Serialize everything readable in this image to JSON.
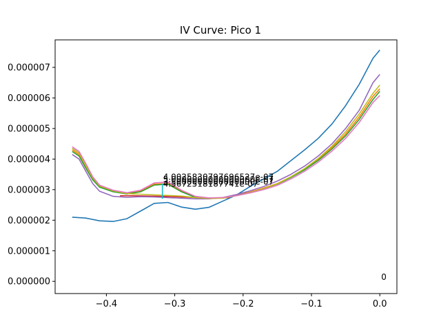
{
  "chart_data": {
    "type": "line",
    "title": "IV Curve: Pico 1",
    "xlabel": "",
    "ylabel": "",
    "xlim": [
      -0.475,
      0.025
    ],
    "ylim": [
      -4e-07,
      7.9e-06
    ],
    "grid": false,
    "legend": "none",
    "x_ticks": [
      {
        "value": -0.4,
        "label": "−0.4"
      },
      {
        "value": -0.3,
        "label": "−0.3"
      },
      {
        "value": -0.2,
        "label": "−0.2"
      },
      {
        "value": -0.1,
        "label": "−0.1"
      },
      {
        "value": 0.0,
        "label": "0.0"
      }
    ],
    "y_ticks": [
      {
        "value": 0.0,
        "label": "0.000000"
      },
      {
        "value": 1e-06,
        "label": "0.000001"
      },
      {
        "value": 2e-06,
        "label": "0.000002"
      },
      {
        "value": 3e-06,
        "label": "0.000003"
      },
      {
        "value": 4e-06,
        "label": "0.000004"
      },
      {
        "value": 5e-06,
        "label": "0.000005"
      },
      {
        "value": 6e-06,
        "label": "0.000006"
      },
      {
        "value": 7e-06,
        "label": "0.000007"
      }
    ],
    "series": [
      {
        "color": "#1f77b4",
        "x": [
          -0.45,
          -0.43,
          -0.41,
          -0.39,
          -0.37,
          -0.35,
          -0.33,
          -0.31,
          -0.29,
          -0.27,
          -0.25,
          -0.23,
          -0.21,
          -0.19,
          -0.17,
          -0.15,
          -0.13,
          -0.11,
          -0.09,
          -0.07,
          -0.05,
          -0.03,
          -0.01,
          0.0
        ],
        "y": [
          2.1e-06,
          2.07e-06,
          1.98e-06,
          1.96e-06,
          2.05e-06,
          2.3e-06,
          2.55e-06,
          2.58e-06,
          2.43e-06,
          2.36e-06,
          2.42e-06,
          2.62e-06,
          2.82e-06,
          3.1e-06,
          3.35e-06,
          3.6e-06,
          3.95e-06,
          4.3e-06,
          4.68e-06,
          5.15e-06,
          5.75e-06,
          6.45e-06,
          7.3e-06,
          7.57e-06
        ]
      },
      {
        "color": "#ff7f0e",
        "x": [
          -0.45,
          -0.44,
          -0.43,
          -0.42,
          -0.41,
          -0.39,
          -0.37,
          -0.35,
          -0.33,
          -0.31,
          -0.29,
          -0.27,
          -0.25,
          -0.23,
          -0.21,
          -0.19,
          -0.17,
          -0.15,
          -0.13,
          -0.11,
          -0.09,
          -0.07,
          -0.05,
          -0.03,
          -0.01,
          0.0
        ],
        "y": [
          4.3e-06,
          4.15e-06,
          3.75e-06,
          3.35e-06,
          3.1e-06,
          2.95e-06,
          2.88e-06,
          2.95e-06,
          3.18e-06,
          3.2e-06,
          2.95e-06,
          2.76e-06,
          2.72e-06,
          2.74e-06,
          2.82e-06,
          2.92e-06,
          3.05e-06,
          3.2e-06,
          3.42e-06,
          3.68e-06,
          4e-06,
          4.38e-06,
          4.82e-06,
          5.38e-06,
          6.05e-06,
          6.3e-06
        ]
      },
      {
        "color": "#2ca02c",
        "x": [
          -0.45,
          -0.44,
          -0.43,
          -0.42,
          -0.41,
          -0.39,
          -0.37,
          -0.35,
          -0.33,
          -0.31,
          -0.29,
          -0.27,
          -0.25,
          -0.23,
          -0.21,
          -0.19,
          -0.17,
          -0.15,
          -0.13,
          -0.11,
          -0.09,
          -0.07,
          -0.05,
          -0.03,
          -0.01,
          0.0
        ],
        "y": [
          4.25e-06,
          4.1e-06,
          3.7e-06,
          3.32e-06,
          3.08e-06,
          2.93e-06,
          2.86e-06,
          2.93e-06,
          3.15e-06,
          3.18e-06,
          2.93e-06,
          2.75e-06,
          2.71e-06,
          2.73e-06,
          2.81e-06,
          2.9e-06,
          3.03e-06,
          3.18e-06,
          3.4e-06,
          3.65e-06,
          3.96e-06,
          4.33e-06,
          4.76e-06,
          5.3e-06,
          5.95e-06,
          6.22e-06
        ]
      },
      {
        "color": "#d62728",
        "x": [
          -0.38,
          -0.36,
          -0.34,
          -0.32,
          -0.3,
          -0.28,
          -0.26,
          -0.24,
          -0.22
        ],
        "y": [
          2.8e-06,
          2.8e-06,
          2.79e-06,
          2.78e-06,
          2.77e-06,
          2.75e-06,
          2.73e-06,
          2.72e-06,
          2.74e-06
        ]
      },
      {
        "color": "#9467bd",
        "x": [
          -0.45,
          -0.44,
          -0.43,
          -0.42,
          -0.41,
          -0.39,
          -0.37,
          -0.35,
          -0.33,
          -0.31,
          -0.29,
          -0.27,
          -0.25,
          -0.23,
          -0.21,
          -0.19,
          -0.17,
          -0.15,
          -0.13,
          -0.11,
          -0.09,
          -0.07,
          -0.05,
          -0.03,
          -0.01,
          0.0
        ],
        "y": [
          4.15e-06,
          4e-06,
          3.6e-06,
          3.2e-06,
          2.95e-06,
          2.78e-06,
          2.75e-06,
          2.77e-06,
          2.76e-06,
          2.74e-06,
          2.72e-06,
          2.7e-06,
          2.7e-06,
          2.74e-06,
          2.84e-06,
          2.96e-06,
          3.1e-06,
          3.28e-06,
          3.5e-06,
          3.77e-06,
          4.1e-06,
          4.5e-06,
          5e-06,
          5.6e-06,
          6.5e-06,
          6.77e-06
        ]
      },
      {
        "color": "#bcbd22",
        "x": [
          -0.45,
          -0.44,
          -0.43,
          -0.42,
          -0.41,
          -0.39,
          -0.37,
          -0.35,
          -0.33,
          -0.31,
          -0.29,
          -0.27,
          -0.25,
          -0.23,
          -0.21,
          -0.19,
          -0.17,
          -0.15,
          -0.13,
          -0.11,
          -0.09,
          -0.07,
          -0.05,
          -0.03,
          -0.01,
          0.0
        ],
        "y": [
          4.35e-06,
          4.2e-06,
          3.78e-06,
          3.38e-06,
          3.12e-06,
          2.96e-06,
          2.87e-06,
          2.85e-06,
          2.83e-06,
          2.81e-06,
          2.79e-06,
          2.74e-06,
          2.71e-06,
          2.72e-06,
          2.8e-06,
          2.9e-06,
          3.03e-06,
          3.19e-06,
          3.42e-06,
          3.69e-06,
          4.02e-06,
          4.42e-06,
          4.9e-06,
          5.48e-06,
          6.15e-06,
          6.42e-06
        ]
      },
      {
        "color": "#e377c2",
        "x": [
          -0.45,
          -0.44,
          -0.43,
          -0.42,
          -0.41,
          -0.39,
          -0.37,
          -0.35,
          -0.33,
          -0.31,
          -0.29,
          -0.27,
          -0.25,
          -0.23,
          -0.21,
          -0.19,
          -0.17,
          -0.15,
          -0.13,
          -0.11,
          -0.09,
          -0.07,
          -0.05,
          -0.03,
          -0.01,
          0.0
        ],
        "y": [
          4.4e-06,
          4.25e-06,
          3.85e-06,
          3.42e-06,
          3.15e-06,
          2.98e-06,
          2.9e-06,
          2.98e-06,
          3.22e-06,
          3.25e-06,
          2.98e-06,
          2.78e-06,
          2.73e-06,
          2.74e-06,
          2.8e-06,
          2.89e-06,
          3e-06,
          3.14e-06,
          3.35e-06,
          3.6e-06,
          3.9e-06,
          4.26e-06,
          4.68e-06,
          5.2e-06,
          5.85e-06,
          6.08e-06
        ]
      },
      {
        "color": "#17becf",
        "x": [
          -0.318,
          -0.318
        ],
        "y": [
          2.7e-06,
          3.2e-06
        ]
      }
    ],
    "annotations": [
      {
        "text": "4.0025830797696527e-07",
        "x": -0.317,
        "y": 3.32e-06
      },
      {
        "text": "5.0000000000000000e-07",
        "x": -0.317,
        "y": 3.24e-06
      },
      {
        "text": "3.5000000000000000e-07",
        "x": -0.317,
        "y": 3.17e-06
      },
      {
        "text": "4.5672518187741e-07",
        "x": -0.317,
        "y": 3.1e-06
      },
      {
        "text": "0",
        "x": 0.0,
        "y": 0.0
      }
    ]
  }
}
